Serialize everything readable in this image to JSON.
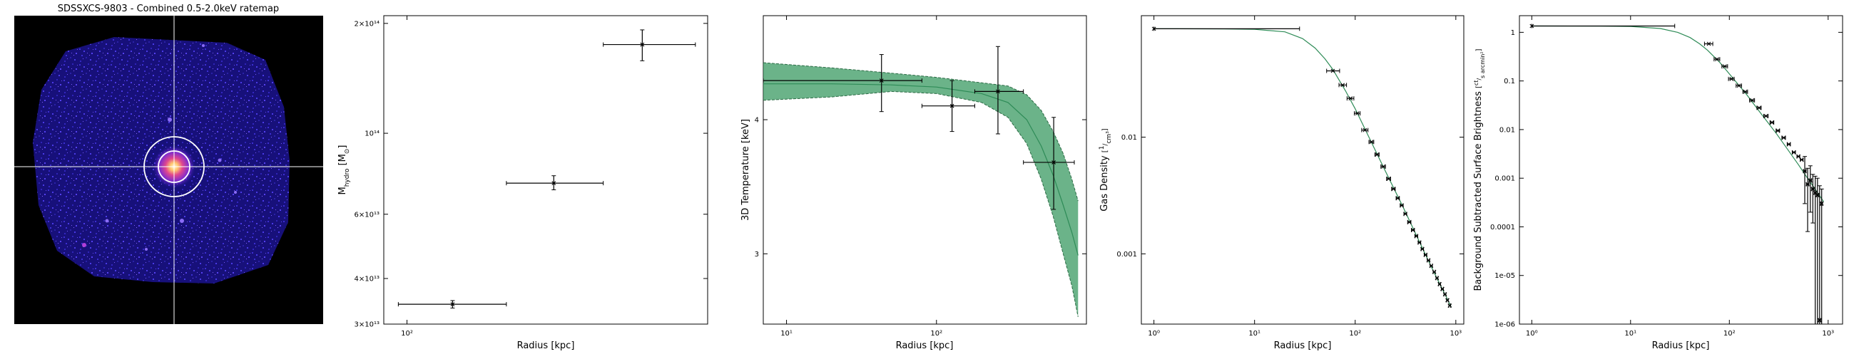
{
  "chart_data": [
    {
      "type": "heatmap",
      "title": "SDSSXCS-9803 - Combined 0.5-2.0keV ratemap"
    },
    {
      "type": "scatter",
      "xlabel": "Radius [kpc]",
      "ylabel": "M_hydro [M_⊙]",
      "xscale": "log",
      "yscale": "log",
      "xlim": [
        80,
        1800
      ],
      "ylim": [
        30000000000000,
        210000000000000
      ],
      "x_ticks": [
        {
          "v": 100,
          "label": "10²"
        }
      ],
      "y_ticks": [
        {
          "v": 30000000000000,
          "label": "3×10¹³"
        },
        {
          "v": 40000000000000,
          "label": "4×10¹³"
        },
        {
          "v": 60000000000000,
          "label": "6×10¹³"
        },
        {
          "v": 100000000000000,
          "label": "10¹⁴"
        },
        {
          "v": 200000000000000,
          "label": "2×10¹⁴"
        }
      ],
      "series": [
        {
          "points": [
            {
              "x": 155,
              "xlo": 92,
              "xhi": 260,
              "y": 34000000000000,
              "ylo": 33200000000000,
              "yhi": 34800000000000
            },
            {
              "x": 410,
              "xlo": 260,
              "xhi": 660,
              "y": 73000000000000,
              "ylo": 70000000000000,
              "yhi": 76500000000000
            },
            {
              "x": 960,
              "xlo": 660,
              "xhi": 1600,
              "y": 175000000000000,
              "ylo": 158000000000000,
              "yhi": 192000000000000
            }
          ]
        }
      ]
    },
    {
      "type": "line",
      "xlabel": "Radius [kpc]",
      "ylabel": "3D Temperature [keV]",
      "xscale": "log",
      "yscale": "log",
      "xlim": [
        7,
        1000
      ],
      "ylim": [
        2.58,
        5.0
      ],
      "x_ticks": [
        {
          "v": 10,
          "label": "10¹"
        },
        {
          "v": 100,
          "label": "10²"
        }
      ],
      "y_ticks": [
        {
          "v": 3,
          "label": "3"
        },
        {
          "v": 4,
          "label": "4"
        }
      ],
      "model": {
        "x": [
          7,
          20,
          50,
          100,
          200,
          300,
          400,
          500,
          600,
          700,
          800,
          880
        ],
        "y": [
          4.32,
          4.32,
          4.31,
          4.29,
          4.23,
          4.15,
          4.0,
          3.78,
          3.55,
          3.33,
          3.14,
          2.99
        ],
        "lower": [
          4.17,
          4.2,
          4.25,
          4.23,
          4.15,
          4.02,
          3.8,
          3.52,
          3.25,
          3.0,
          2.8,
          2.62
        ],
        "upper": [
          4.52,
          4.47,
          4.42,
          4.38,
          4.33,
          4.3,
          4.22,
          4.08,
          3.9,
          3.72,
          3.52,
          3.36
        ]
      },
      "series": [
        {
          "points": [
            {
              "x": 43,
              "xlo": 7,
              "xhi": 80,
              "y": 4.35,
              "ylo": 4.07,
              "yhi": 4.6
            },
            {
              "x": 127,
              "xlo": 80,
              "xhi": 180,
              "y": 4.12,
              "ylo": 3.9,
              "yhi": 4.35
            },
            {
              "x": 257,
              "xlo": 180,
              "xhi": 380,
              "y": 4.25,
              "ylo": 3.88,
              "yhi": 4.68
            },
            {
              "x": 605,
              "xlo": 380,
              "xhi": 830,
              "y": 3.65,
              "ylo": 3.3,
              "yhi": 4.02
            }
          ]
        }
      ]
    },
    {
      "type": "line",
      "xlabel": "Radius [kpc]",
      "ylabel": "Gas Density [1/cm³]",
      "xscale": "log",
      "yscale": "log",
      "xlim": [
        0.75,
        1200
      ],
      "ylim": [
        0.00025,
        0.11
      ],
      "x_ticks": [
        {
          "v": 1,
          "label": "10⁰"
        },
        {
          "v": 10,
          "label": "10¹"
        },
        {
          "v": 100,
          "label": "10²"
        },
        {
          "v": 1000,
          "label": "10³"
        }
      ],
      "y_ticks": [
        {
          "v": 0.01,
          "label": "0.01"
        },
        {
          "v": 0.001,
          "label": "0.001"
        }
      ],
      "model": {
        "x": [
          1,
          5,
          10,
          20,
          30,
          40,
          50,
          60,
          80,
          100,
          150,
          200,
          300,
          400,
          500,
          600,
          700,
          800,
          900
        ],
        "y": [
          0.085,
          0.0847,
          0.084,
          0.08,
          0.07,
          0.058,
          0.047,
          0.038,
          0.025,
          0.0175,
          0.0085,
          0.0051,
          0.0025,
          0.00148,
          0.00098,
          0.00071,
          0.00054,
          0.00043,
          0.00035
        ]
      },
      "series": [
        {
          "points": [
            {
              "x": 1,
              "xlo": 1,
              "xhi": 28,
              "y": 0.085
            },
            {
              "x": 60,
              "xlo": 52,
              "xhi": 70,
              "y": 0.037
            },
            {
              "x": 75,
              "xlo": 69,
              "xhi": 82,
              "y": 0.028
            },
            {
              "x": 90,
              "xlo": 83,
              "xhi": 97,
              "y": 0.0215
            },
            {
              "x": 105,
              "xlo": 98,
              "xhi": 112,
              "y": 0.016
            },
            {
              "x": 125,
              "xlo": 116,
              "xhi": 134,
              "y": 0.0115
            },
            {
              "x": 145,
              "xlo": 137,
              "xhi": 153,
              "y": 0.0091
            },
            {
              "x": 165,
              "xlo": 157,
              "xhi": 173,
              "y": 0.0071
            },
            {
              "x": 190,
              "xlo": 180,
              "xhi": 200,
              "y": 0.0056
            },
            {
              "x": 215,
              "xlo": 205,
              "xhi": 225,
              "y": 0.0044
            },
            {
              "x": 240,
              "xlo": 230,
              "xhi": 250,
              "y": 0.0036
            },
            {
              "x": 265,
              "xlo": 255,
              "xhi": 275,
              "y": 0.003
            },
            {
              "x": 290,
              "xlo": 280,
              "xhi": 300,
              "y": 0.0026
            },
            {
              "x": 315,
              "xlo": 305,
              "xhi": 325,
              "y": 0.0022
            },
            {
              "x": 345,
              "xlo": 332,
              "xhi": 358,
              "y": 0.00187
            },
            {
              "x": 375,
              "xlo": 362,
              "xhi": 388,
              "y": 0.0016
            },
            {
              "x": 405,
              "xlo": 392,
              "xhi": 418,
              "y": 0.00142
            },
            {
              "x": 435,
              "xlo": 422,
              "xhi": 448,
              "y": 0.00125
            },
            {
              "x": 465,
              "xlo": 452,
              "xhi": 478,
              "y": 0.0011
            },
            {
              "x": 500,
              "xlo": 485,
              "xhi": 515,
              "y": 0.00098
            },
            {
              "x": 535,
              "xlo": 520,
              "xhi": 550,
              "y": 0.00088
            },
            {
              "x": 570,
              "xlo": 555,
              "xhi": 585,
              "y": 0.00079
            },
            {
              "x": 610,
              "xlo": 595,
              "xhi": 625,
              "y": 0.0007
            },
            {
              "x": 650,
              "xlo": 635,
              "xhi": 665,
              "y": 0.00062
            },
            {
              "x": 690,
              "xlo": 675,
              "xhi": 705,
              "y": 0.00055
            },
            {
              "x": 735,
              "xlo": 718,
              "xhi": 752,
              "y": 0.0005
            },
            {
              "x": 780,
              "xlo": 762,
              "xhi": 798,
              "y": 0.00045
            },
            {
              "x": 825,
              "xlo": 808,
              "xhi": 842,
              "y": 0.0004
            },
            {
              "x": 870,
              "xlo": 852,
              "xhi": 888,
              "y": 0.00036
            }
          ]
        }
      ]
    },
    {
      "type": "line",
      "xlabel": "Radius [kpc]",
      "ylabel": "Background Subtracted Surface Brightness [ct/(s arcmin²)]",
      "xscale": "log",
      "yscale": "log",
      "xlim": [
        0.75,
        1400
      ],
      "ylim": [
        1e-06,
        2.2
      ],
      "x_ticks": [
        {
          "v": 1,
          "label": "10⁰"
        },
        {
          "v": 10,
          "label": "10¹"
        },
        {
          "v": 100,
          "label": "10²"
        },
        {
          "v": 1000,
          "label": "10³"
        }
      ],
      "y_ticks": [
        {
          "v": 1,
          "label": "1"
        },
        {
          "v": 0.1,
          "label": "0.1"
        },
        {
          "v": 0.01,
          "label": "0.01"
        },
        {
          "v": 0.001,
          "label": "0.001"
        },
        {
          "v": 0.0001,
          "label": "0.0001"
        },
        {
          "v": 1e-05,
          "label": "1e-05"
        },
        {
          "v": 1e-06,
          "label": "1e-06"
        }
      ],
      "model": {
        "x": [
          1,
          5,
          10,
          20,
          30,
          40,
          50,
          60,
          80,
          100,
          150,
          200,
          300,
          400,
          500,
          600,
          700,
          800,
          900
        ],
        "y": [
          1.35,
          1.34,
          1.32,
          1.2,
          1.0,
          0.78,
          0.58,
          0.43,
          0.24,
          0.14,
          0.052,
          0.024,
          0.0082,
          0.0036,
          0.0019,
          0.0011,
          0.0007,
          0.00047,
          0.00033
        ]
      },
      "series": [
        {
          "points": [
            {
              "x": 1,
              "xlo": 1,
              "xhi": 28,
              "y": 1.35
            },
            {
              "x": 62,
              "xlo": 56,
              "xhi": 68,
              "y": 0.58
            },
            {
              "x": 75,
              "xlo": 70,
              "xhi": 80,
              "y": 0.28
            },
            {
              "x": 90,
              "xlo": 84,
              "xhi": 96,
              "y": 0.2
            },
            {
              "x": 105,
              "xlo": 98,
              "xhi": 112,
              "y": 0.11
            },
            {
              "x": 125,
              "xlo": 117,
              "xhi": 133,
              "y": 0.08
            },
            {
              "x": 145,
              "xlo": 137,
              "xhi": 153,
              "y": 0.06
            },
            {
              "x": 170,
              "xlo": 160,
              "xhi": 180,
              "y": 0.04
            },
            {
              "x": 200,
              "xlo": 190,
              "xhi": 210,
              "y": 0.028
            },
            {
              "x": 235,
              "xlo": 223,
              "xhi": 247,
              "y": 0.019
            },
            {
              "x": 270,
              "xlo": 258,
              "xhi": 282,
              "y": 0.014
            },
            {
              "x": 310,
              "xlo": 297,
              "xhi": 323,
              "y": 0.0095
            },
            {
              "x": 355,
              "xlo": 340,
              "xhi": 370,
              "y": 0.0068
            },
            {
              "x": 400,
              "xlo": 385,
              "xhi": 415,
              "y": 0.005
            },
            {
              "x": 450,
              "xlo": 433,
              "xhi": 467,
              "y": 0.0034
            },
            {
              "x": 500,
              "xlo": 483,
              "xhi": 517,
              "y": 0.0028
            },
            {
              "x": 540,
              "xlo": 522,
              "xhi": 558,
              "y": 0.0024
            },
            {
              "x": 580,
              "xlo": 562,
              "xhi": 598,
              "y": 0.0014,
              "ylo": 0.0003,
              "yhi": 0.0028
            },
            {
              "x": 620,
              "xlo": 601,
              "xhi": 639,
              "y": 0.00075,
              "ylo": 8e-05,
              "yhi": 0.0016
            },
            {
              "x": 660,
              "xlo": 641,
              "xhi": 679,
              "y": 0.0009,
              "ylo": 0.0002,
              "yhi": 0.0018
            },
            {
              "x": 700,
              "xlo": 681,
              "xhi": 719,
              "y": 0.0006,
              "ylo": 0.00012,
              "yhi": 0.0012
            },
            {
              "x": 740,
              "xlo": 721,
              "xhi": 759,
              "y": 0.0005,
              "ylo": 1e-06,
              "yhi": 0.0011
            },
            {
              "x": 780,
              "xlo": 761,
              "xhi": 799,
              "y": 0.00045,
              "ylo": 1e-06,
              "yhi": 0.001
            },
            {
              "x": 820,
              "xlo": 801,
              "xhi": 839,
              "y": 1.2e-06,
              "ylo": 1e-06,
              "yhi": 0.0007
            },
            {
              "x": 860,
              "xlo": 841,
              "xhi": 879,
              "y": 0.0003,
              "ylo": 1e-06,
              "yhi": 0.0006
            }
          ]
        }
      ]
    }
  ],
  "colors": {
    "marker": "#000000",
    "model_line": "#2e8b57",
    "band_fill": "#3a9a62",
    "band_edge": "#2c6b45",
    "image_background": "#000000",
    "photon_blue": "#3c2fd2",
    "photon_purple": "#b13fd8",
    "crosshair": "#ffffff"
  }
}
